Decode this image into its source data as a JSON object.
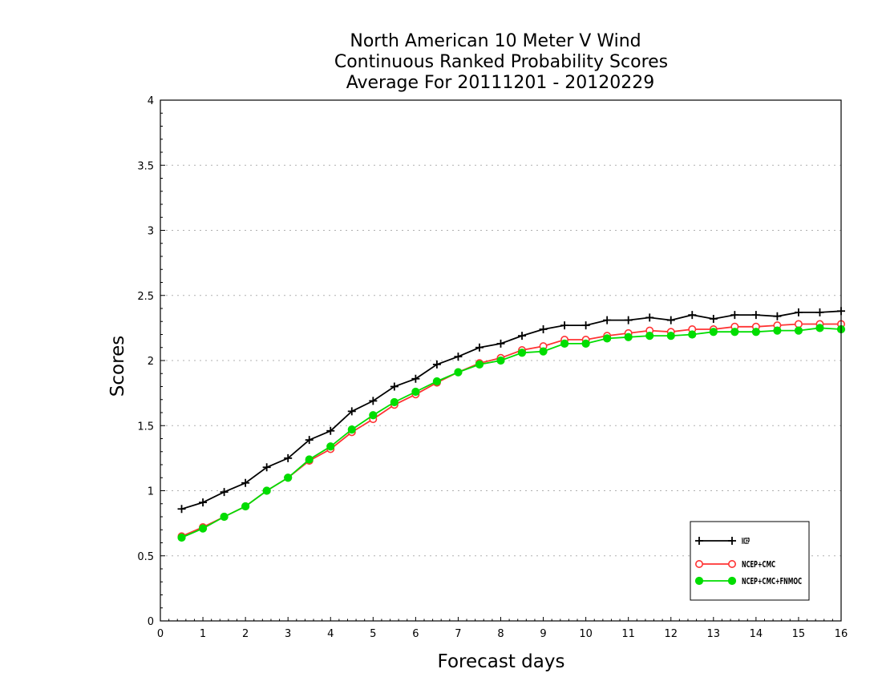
{
  "chart_data": {
    "type": "line",
    "title": [
      "North American 10 Meter V Wind",
      "Continuous Ranked Probability Scores",
      "Average For 20111201 - 20120229"
    ],
    "xlabel": "Forecast days",
    "ylabel": "Scores",
    "xlim": [
      0,
      16
    ],
    "ylim": [
      0,
      4
    ],
    "x_ticks": [
      "0",
      "1",
      "2",
      "3",
      "4",
      "5",
      "6",
      "7",
      "8",
      "9",
      "10",
      "11",
      "12",
      "13",
      "14",
      "15",
      "16"
    ],
    "y_ticks": [
      "0",
      "0.5",
      "1",
      "1.5",
      "2",
      "2.5",
      "3",
      "3.5",
      "4"
    ],
    "grid": "horizontal-dotted",
    "legend_position": "bottom-right",
    "x": [
      0.5,
      1,
      1.5,
      2,
      2.5,
      3,
      3.5,
      4,
      4.5,
      5,
      5.5,
      6,
      6.5,
      7,
      7.5,
      8,
      8.5,
      9,
      9.5,
      10,
      10.5,
      11,
      11.5,
      12,
      12.5,
      13,
      13.5,
      14,
      14.5,
      15,
      15.5,
      16
    ],
    "series": [
      {
        "name": "NCEP",
        "color": "#000000",
        "marker": "plus",
        "values": [
          0.86,
          0.91,
          0.99,
          1.06,
          1.18,
          1.25,
          1.39,
          1.46,
          1.61,
          1.69,
          1.8,
          1.86,
          1.97,
          2.03,
          2.1,
          2.13,
          2.19,
          2.24,
          2.27,
          2.27,
          2.31,
          2.31,
          2.33,
          2.31,
          2.35,
          2.32,
          2.35,
          2.35,
          2.34,
          2.37,
          2.37,
          2.38
        ]
      },
      {
        "name": "NCEP+CMC",
        "color": "#ff3333",
        "marker": "open-circle",
        "values": [
          0.65,
          0.72,
          0.8,
          0.88,
          1.0,
          1.1,
          1.23,
          1.32,
          1.45,
          1.55,
          1.66,
          1.74,
          1.83,
          1.91,
          1.98,
          2.02,
          2.08,
          2.11,
          2.16,
          2.16,
          2.19,
          2.21,
          2.23,
          2.22,
          2.24,
          2.24,
          2.26,
          2.26,
          2.27,
          2.28,
          2.28,
          2.28
        ]
      },
      {
        "name": "NCEP+CMC+FNMOC",
        "color": "#00dd00",
        "marker": "filled-circle",
        "values": [
          0.64,
          0.71,
          0.8,
          0.88,
          1.0,
          1.1,
          1.24,
          1.34,
          1.47,
          1.58,
          1.68,
          1.76,
          1.84,
          1.91,
          1.97,
          2.0,
          2.06,
          2.07,
          2.13,
          2.13,
          2.17,
          2.18,
          2.19,
          2.19,
          2.2,
          2.22,
          2.22,
          2.22,
          2.23,
          2.23,
          2.25,
          2.24
        ]
      }
    ]
  }
}
